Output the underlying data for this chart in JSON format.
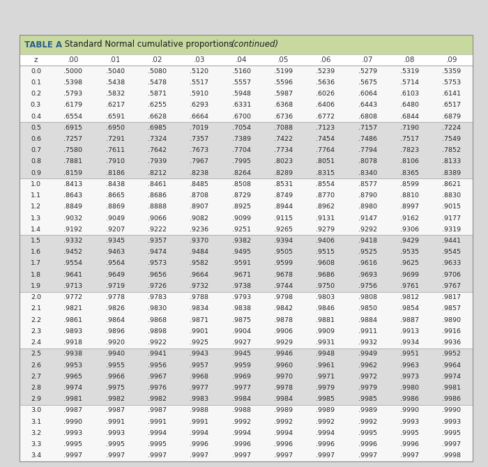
{
  "title_bold": "TABLE A",
  "title_normal": " Standard Normal cumulative proportions ",
  "title_italic": "(continued)",
  "header_bg": "#c8d9a0",
  "header_text_color": "#2b5c8a",
  "col_headers": [
    "z",
    ".00",
    ".01",
    ".02",
    ".03",
    ".04",
    ".05",
    ".06",
    ".07",
    ".08",
    ".09"
  ],
  "rows": [
    [
      "0.0",
      ".5000",
      ".5040",
      ".5080",
      ".5120",
      ".5160",
      ".5199",
      ".5239",
      ".5279",
      ".5319",
      ".5359"
    ],
    [
      "0.1",
      ".5398",
      ".5438",
      ".5478",
      ".5517",
      ".5557",
      ".5596",
      ".5636",
      ".5675",
      ".5714",
      ".5753"
    ],
    [
      "0.2",
      ".5793",
      ".5832",
      ".5871",
      ".5910",
      ".5948",
      ".5987",
      ".6026",
      ".6064",
      ".6103",
      ".6141"
    ],
    [
      "0.3",
      ".6179",
      ".6217",
      ".6255",
      ".6293",
      ".6331",
      ".6368",
      ".6406",
      ".6443",
      ".6480",
      ".6517"
    ],
    [
      "0.4",
      ".6554",
      ".6591",
      ".6628",
      ".6664",
      ".6700",
      ".6736",
      ".6772",
      ".6808",
      ".6844",
      ".6879"
    ],
    [
      "0.5",
      ".6915",
      ".6950",
      ".6985",
      ".7019",
      ".7054",
      ".7088",
      ".7123",
      ".7157",
      ".7190",
      ".7224"
    ],
    [
      "0.6",
      ".7257",
      ".7291",
      ".7324",
      ".7357",
      ".7389",
      ".7422",
      ".7454",
      ".7486",
      ".7517",
      ".7549"
    ],
    [
      "0.7",
      ".7580",
      ".7611",
      ".7642",
      ".7673",
      ".7704",
      ".7734",
      ".7764",
      ".7794",
      ".7823",
      ".7852"
    ],
    [
      "0.8",
      ".7881",
      ".7910",
      ".7939",
      ".7967",
      ".7995",
      ".8023",
      ".8051",
      ".8078",
      ".8106",
      ".8133"
    ],
    [
      "0.9",
      ".8159",
      ".8186",
      ".8212",
      ".8238",
      ".8264",
      ".8289",
      ".8315",
      ".8340",
      ".8365",
      ".8389"
    ],
    [
      "1.0",
      ".8413",
      ".8438",
      ".8461",
      ".8485",
      ".8508",
      ".8531",
      ".8554",
      ".8577",
      ".8599",
      ".8621"
    ],
    [
      "1.1",
      ".8643",
      ".8665",
      ".8686",
      ".8708",
      ".8729",
      ".8749",
      ".8770",
      ".8790",
      ".8810",
      ".8830"
    ],
    [
      "1.2",
      ".8849",
      ".8869",
      ".8888",
      ".8907",
      ".8925",
      ".8944",
      ".8962",
      ".8980",
      ".8997",
      ".9015"
    ],
    [
      "1.3",
      ".9032",
      ".9049",
      ".9066",
      ".9082",
      ".9099",
      ".9115",
      ".9131",
      ".9147",
      ".9162",
      ".9177"
    ],
    [
      "1.4",
      ".9192",
      ".9207",
      ".9222",
      ".9236",
      ".9251",
      ".9265",
      ".9279",
      ".9292",
      ".9306",
      ".9319"
    ],
    [
      "1.5",
      ".9332",
      ".9345",
      ".9357",
      ".9370",
      ".9382",
      ".9394",
      ".9406",
      ".9418",
      ".9429",
      ".9441"
    ],
    [
      "1.6",
      ".9452",
      ".9463",
      ".9474",
      ".9484",
      ".9495",
      ".9505",
      ".9515",
      ".9525",
      ".9535",
      ".9545"
    ],
    [
      "1.7",
      ".9554",
      ".9564",
      ".9573",
      ".9582",
      ".9591",
      ".9599",
      ".9608",
      ".9616",
      ".9625",
      ".9633"
    ],
    [
      "1.8",
      ".9641",
      ".9649",
      ".9656",
      ".9664",
      ".9671",
      ".9678",
      ".9686",
      ".9693",
      ".9699",
      ".9706"
    ],
    [
      "1.9",
      ".9713",
      ".9719",
      ".9726",
      ".9732",
      ".9738",
      ".9744",
      ".9750",
      ".9756",
      ".9761",
      ".9767"
    ],
    [
      "2.0",
      ".9772",
      ".9778",
      ".9783",
      ".9788",
      ".9793",
      ".9798",
      ".9803",
      ".9808",
      ".9812",
      ".9817"
    ],
    [
      "2.1",
      ".9821",
      ".9826",
      ".9830",
      ".9834",
      ".9838",
      ".9842",
      ".9846",
      ".9850",
      ".9854",
      ".9857"
    ],
    [
      "2.2",
      ".9861",
      ".9864",
      ".9868",
      ".9871",
      ".9875",
      ".9878",
      ".9881",
      ".9884",
      ".9887",
      ".9890"
    ],
    [
      "2.3",
      ".9893",
      ".9896",
      ".9898",
      ".9901",
      ".9904",
      ".9906",
      ".9909",
      ".9911",
      ".9913",
      ".9916"
    ],
    [
      "2.4",
      ".9918",
      ".9920",
      ".9922",
      ".9925",
      ".9927",
      ".9929",
      ".9931",
      ".9932",
      ".9934",
      ".9936"
    ],
    [
      "2.5",
      ".9938",
      ".9940",
      ".9941",
      ".9943",
      ".9945",
      ".9946",
      ".9948",
      ".9949",
      ".9951",
      ".9952"
    ],
    [
      "2.6",
      ".9953",
      ".9955",
      ".9956",
      ".9957",
      ".9959",
      ".9960",
      ".9961",
      ".9962",
      ".9963",
      ".9964"
    ],
    [
      "2.7",
      ".9965",
      ".9966",
      ".9967",
      ".9968",
      ".9969",
      ".9970",
      ".9971",
      ".9972",
      ".9973",
      ".9974"
    ],
    [
      "2.8",
      ".9974",
      ".9975",
      ".9976",
      ".9977",
      ".9977",
      ".9978",
      ".9979",
      ".9979",
      ".9980",
      ".9981"
    ],
    [
      "2.9",
      ".9981",
      ".9982",
      ".9982",
      ".9983",
      ".9984",
      ".9984",
      ".9985",
      ".9985",
      ".9986",
      ".9986"
    ],
    [
      "3.0",
      ".9987",
      ".9987",
      ".9987",
      ".9988",
      ".9988",
      ".9989",
      ".9989",
      ".9989",
      ".9990",
      ".9990"
    ],
    [
      "3.1",
      ".9990",
      ".9991",
      ".9991",
      ".9991",
      ".9992",
      ".9992",
      ".9992",
      ".9992",
      ".9993",
      ".9993"
    ],
    [
      "3.2",
      ".9993",
      ".9993",
      ".9994",
      ".9994",
      ".9994",
      ".9994",
      ".9994",
      ".9995",
      ".9995",
      ".9995"
    ],
    [
      "3.3",
      ".9995",
      ".9995",
      ".9995",
      ".9996",
      ".9996",
      ".9996",
      ".9996",
      ".9996",
      ".9996",
      ".9997"
    ],
    [
      "3.4",
      ".9997",
      ".9997",
      ".9997",
      ".9997",
      ".9997",
      ".9997",
      ".9997",
      ".9997",
      ".9997",
      ".9998"
    ]
  ],
  "page_bg": "#d8d8d8",
  "table_bg": "#ffffff",
  "col_header_bg": "#ffffff",
  "band_white": "#ffffff",
  "band_gray": "#e2e2e2",
  "shaded_band_white": "#f0f0f0",
  "shaded_band_gray": "#d4d4d4",
  "divider_color": "#aaaaaa",
  "outer_border_color": "#888888"
}
